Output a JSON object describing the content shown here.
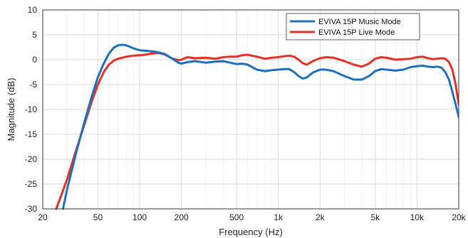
{
  "chart_data": {
    "type": "line",
    "title": "",
    "xlabel": "Frequency (Hz)",
    "ylabel": "Magnitude (dB)",
    "xscale": "log",
    "xlim": [
      20,
      20000
    ],
    "ylim": [
      -30,
      10
    ],
    "grid": true,
    "legend_position": "top-right",
    "xticks": [
      20,
      50,
      100,
      200,
      500,
      1000,
      2000,
      5000,
      10000,
      20000
    ],
    "xtick_labels": [
      "20",
      "50",
      "100",
      "200",
      "500",
      "1k",
      "2k",
      "5k",
      "10k",
      "20k"
    ],
    "yticks": [
      10,
      5,
      0,
      -5,
      -10,
      -15,
      -20,
      -25,
      -30
    ],
    "ytick_labels": [
      "10",
      "5",
      "0",
      "-5",
      "-10",
      "-15",
      "-20",
      "-25",
      "-30"
    ],
    "series": [
      {
        "name": "EVIVA 15P Music Mode",
        "color": "#1f6fbf",
        "x": [
          28,
          30,
          35,
          40,
          45,
          50,
          55,
          60,
          65,
          70,
          75,
          80,
          90,
          100,
          110,
          120,
          130,
          140,
          150,
          170,
          190,
          200,
          220,
          250,
          300,
          350,
          400,
          450,
          500,
          550,
          600,
          700,
          800,
          900,
          1000,
          1100,
          1200,
          1300,
          1400,
          1500,
          1600,
          1700,
          1800,
          2000,
          2200,
          2500,
          3000,
          3500,
          4000,
          4500,
          5000,
          5500,
          6000,
          7000,
          8000,
          9000,
          10000,
          11000,
          12000,
          13000,
          14000,
          15000,
          16000,
          17000,
          18000,
          19000,
          20000
        ],
        "y": [
          -30,
          -26,
          -18.5,
          -12.5,
          -7.5,
          -3.5,
          -0.8,
          1.2,
          2.4,
          2.9,
          3.0,
          2.9,
          2.3,
          1.9,
          1.8,
          1.7,
          1.6,
          1.4,
          1.2,
          0.3,
          -0.6,
          -0.8,
          -0.5,
          -0.3,
          -0.6,
          -0.4,
          -0.3,
          -0.6,
          -0.9,
          -0.8,
          -1.0,
          -2.0,
          -2.3,
          -2.1,
          -2.0,
          -1.9,
          -1.9,
          -2.5,
          -3.3,
          -3.8,
          -3.6,
          -3.0,
          -2.5,
          -2.0,
          -2.0,
          -2.3,
          -3.3,
          -4.0,
          -4.0,
          -3.3,
          -2.3,
          -1.9,
          -2.0,
          -2.2,
          -2.0,
          -1.5,
          -1.3,
          -1.2,
          -1.4,
          -1.5,
          -1.4,
          -1.6,
          -2.5,
          -4.0,
          -6.5,
          -9.0,
          -11.5
        ]
      },
      {
        "name": "EVIVA 15P Live Mode",
        "color": "#e53027",
        "x": [
          25,
          27,
          30,
          35,
          40,
          45,
          50,
          55,
          60,
          65,
          70,
          80,
          90,
          100,
          110,
          120,
          130,
          140,
          150,
          170,
          190,
          200,
          220,
          250,
          300,
          350,
          400,
          450,
          500,
          550,
          600,
          700,
          800,
          900,
          1000,
          1100,
          1200,
          1300,
          1400,
          1500,
          1600,
          1700,
          1800,
          2000,
          2200,
          2500,
          3000,
          3500,
          4000,
          4500,
          5000,
          5500,
          6000,
          7000,
          8000,
          9000,
          10000,
          11000,
          12000,
          13000,
          14000,
          15000,
          16000,
          17000,
          18000,
          19000,
          20000
        ],
        "y": [
          -30,
          -27.5,
          -24,
          -18,
          -13,
          -8.5,
          -5,
          -2.5,
          -1.0,
          -0.2,
          0.2,
          0.6,
          0.8,
          0.9,
          1.0,
          1.2,
          1.3,
          1.3,
          1.1,
          0.3,
          -0.1,
          0.0,
          0.5,
          0.3,
          0.4,
          0.2,
          0.5,
          0.6,
          0.6,
          0.9,
          1.0,
          0.6,
          0.2,
          0.4,
          0.5,
          0.7,
          0.8,
          0.6,
          0.0,
          -0.7,
          -1.0,
          -0.6,
          -0.2,
          0.3,
          0.5,
          0.4,
          -0.3,
          -1.0,
          -1.4,
          -0.8,
          0.2,
          0.5,
          0.4,
          0.0,
          0.1,
          0.2,
          0.5,
          0.6,
          0.3,
          0.1,
          0.2,
          0.3,
          0.2,
          -0.5,
          -2.0,
          -5.0,
          -9.0
        ]
      }
    ]
  }
}
